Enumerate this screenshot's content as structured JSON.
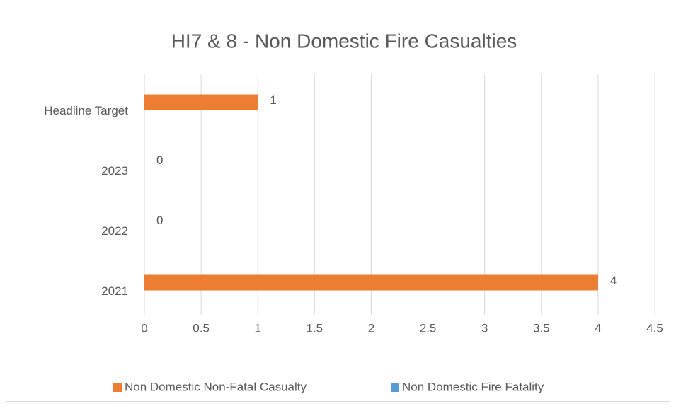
{
  "chart_data": {
    "type": "bar",
    "orientation": "horizontal",
    "title": "HI7 & 8 - Non Domestic Fire Casualties",
    "categories": [
      "2021",
      "2022",
      "2023",
      "Headline Target"
    ],
    "series": [
      {
        "name": "Non Domestic Non-Fatal Casualty",
        "color": "#ed7d31",
        "values": [
          4,
          0,
          0,
          1
        ]
      },
      {
        "name": "Non Domestic Fire Fatality",
        "color": "#5b9bd5",
        "values": [
          null,
          null,
          null,
          null
        ]
      }
    ],
    "xlim": [
      0,
      4.5
    ],
    "xticks": [
      0,
      0.5,
      1,
      1.5,
      2,
      2.5,
      3,
      3.5,
      4,
      4.5
    ],
    "grid": true,
    "legend": "bottom"
  }
}
